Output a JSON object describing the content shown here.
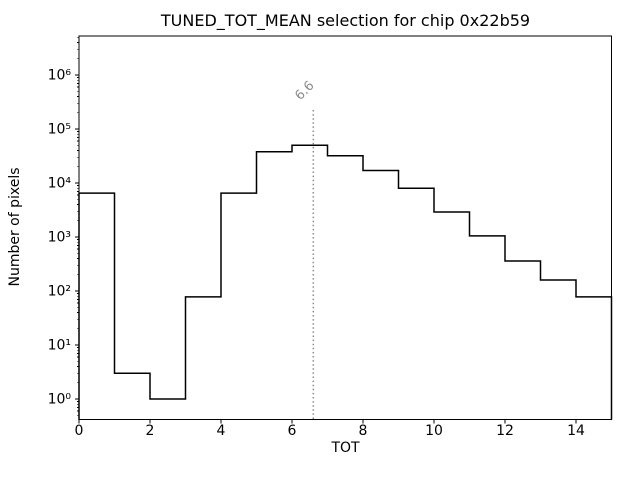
{
  "title": "TUNED_TOT_MEAN selection for chip 0x22b59",
  "axes": {
    "x": {
      "label": "TOT",
      "tick_values": [
        0,
        2,
        4,
        6,
        8,
        10,
        12,
        14
      ],
      "tick_labels": [
        "0",
        "2",
        "4",
        "6",
        "8",
        "10",
        "12",
        "14"
      ],
      "lim": [
        0,
        15
      ]
    },
    "y": {
      "label": "Number of pixels",
      "scale": "log",
      "tick_exponents": [
        0,
        1,
        2,
        3,
        4,
        5,
        6
      ],
      "tick_labels": [
        "10⁰",
        "10¹",
        "10²",
        "10³",
        "10⁴",
        "10⁵",
        "10⁶"
      ],
      "lim": [
        0.42,
        5300000
      ]
    }
  },
  "annotation": {
    "text": "6.6",
    "x": 6.6
  },
  "chart_data": {
    "type": "bar",
    "style": "step-histogram",
    "title": "TUNED_TOT_MEAN selection for chip 0x22b59",
    "xlabel": "TOT",
    "ylabel": "Number of pixels",
    "yscale": "log",
    "xlim": [
      0,
      15
    ],
    "ylim": [
      0.42,
      5300000
    ],
    "grid": false,
    "legend": "none",
    "bin_edges": [
      0,
      1,
      2,
      3,
      4,
      5,
      6,
      7,
      8,
      9,
      10,
      11,
      12,
      13,
      14,
      15
    ],
    "counts": [
      6500,
      3,
      1,
      78,
      6500,
      38000,
      50000,
      32000,
      17000,
      8000,
      2900,
      1050,
      360,
      160,
      78
    ],
    "vline": {
      "x": 6.6,
      "label": "6.6",
      "style": "dotted"
    }
  },
  "colors": {
    "background": "#ffffff",
    "axis": "#000000",
    "histogram_line": "#000000",
    "annotation_gray": "#8c8c8c"
  }
}
